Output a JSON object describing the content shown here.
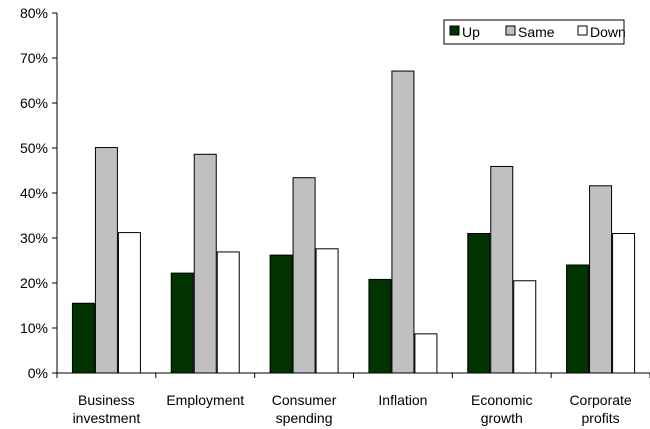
{
  "chart_data": {
    "type": "bar",
    "categories": [
      [
        "Business",
        "investment"
      ],
      [
        "Employment"
      ],
      [
        "Consumer",
        "spending"
      ],
      [
        "Inflation"
      ],
      [
        "Economic",
        "growth"
      ],
      [
        "Corporate",
        "profits"
      ]
    ],
    "series": [
      {
        "name": "Up",
        "color": "#003300",
        "values": [
          15.5,
          22.2,
          26.2,
          20.8,
          31.0,
          24.0
        ]
      },
      {
        "name": "Same",
        "color": "#c0c0c0",
        "values": [
          50.1,
          48.6,
          43.4,
          67.1,
          45.9,
          41.6
        ]
      },
      {
        "name": "Down",
        "color": "#ffffff",
        "values": [
          31.2,
          26.9,
          27.6,
          8.7,
          20.5,
          31.0
        ]
      }
    ],
    "ylim": [
      0,
      80
    ],
    "yticks": [
      "0%",
      "10%",
      "20%",
      "30%",
      "40%",
      "50%",
      "60%",
      "70%",
      "80%"
    ],
    "legend": {
      "position": "top-right"
    },
    "grid": false
  }
}
